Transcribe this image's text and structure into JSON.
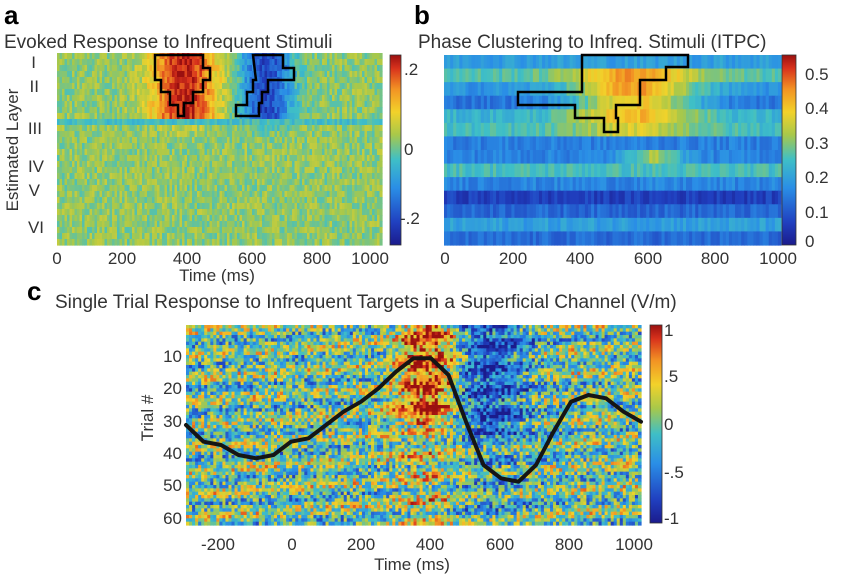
{
  "panel_letters": [
    "a",
    "b",
    "c"
  ],
  "chart_data": [
    {
      "type": "heatmap",
      "title": "Evoked Response to Infrequent Stimuli",
      "xlabel": "Time (ms)",
      "ylabel": "Estimated Layer",
      "xlim": [
        0,
        1000
      ],
      "xticks": [
        "0",
        "200",
        "400",
        "600",
        "800",
        "1000"
      ],
      "yticks": [
        "I",
        "II",
        "III",
        "IV",
        "V",
        "VI"
      ],
      "colorbar": {
        "ticks": [
          ".2",
          "0",
          "-.2"
        ],
        "range": [
          -0.25,
          0.25
        ]
      },
      "colormap": "jet",
      "clusters": [
        {
          "sign": "positive",
          "time_ms": [
            320,
            470
          ],
          "layers": "I-II"
        },
        {
          "sign": "negative",
          "time_ms": [
            560,
            720
          ],
          "layers": "I-II"
        }
      ]
    },
    {
      "type": "heatmap",
      "title": "Phase Clustering to Infreq. Stimuli (ITPC)",
      "xlim": [
        0,
        1000
      ],
      "xticks": [
        "0",
        "200",
        "400",
        "600",
        "800",
        "1000"
      ],
      "colorbar": {
        "ticks": [
          "0.5",
          "0.4",
          "0.3",
          "0.2",
          "0.1",
          "0"
        ],
        "range": [
          0,
          0.55
        ]
      },
      "colormap": "jet",
      "clusters": [
        {
          "sign": "positive",
          "time_ms": [
            210,
            720
          ],
          "rows": "upper"
        }
      ]
    },
    {
      "type": "heatmap",
      "title": "Single Trial Response to Infrequent Targets in a Superficial Channel (V/m)",
      "xlabel": "Time (ms)",
      "ylabel": "Trial #",
      "xlim": [
        -300,
        1000
      ],
      "ylim": [
        1,
        61
      ],
      "xticks": [
        "-200",
        "0",
        "200",
        "400",
        "600",
        "800",
        "1000"
      ],
      "yticks": [
        "10",
        "20",
        "30",
        "40",
        "50",
        "60"
      ],
      "colorbar": {
        "ticks": [
          "1",
          ".5",
          "0",
          "-.5",
          "-1"
        ],
        "range": [
          -1,
          1
        ]
      },
      "colormap": "jet",
      "overlay_line": {
        "description": "trial-averaged response",
        "x": [
          -300,
          -250,
          -200,
          -150,
          -100,
          -50,
          0,
          50,
          100,
          150,
          200,
          250,
          300,
          350,
          400,
          450,
          500,
          550,
          600,
          650,
          700,
          750,
          800,
          850,
          900,
          950,
          1000
        ],
        "trial": [
          31,
          36,
          37,
          40,
          41,
          40,
          36,
          35,
          31,
          27,
          24,
          20,
          15,
          11,
          11,
          16,
          30,
          43,
          47,
          48,
          43,
          33,
          24,
          22,
          23,
          27,
          30
        ]
      }
    }
  ]
}
